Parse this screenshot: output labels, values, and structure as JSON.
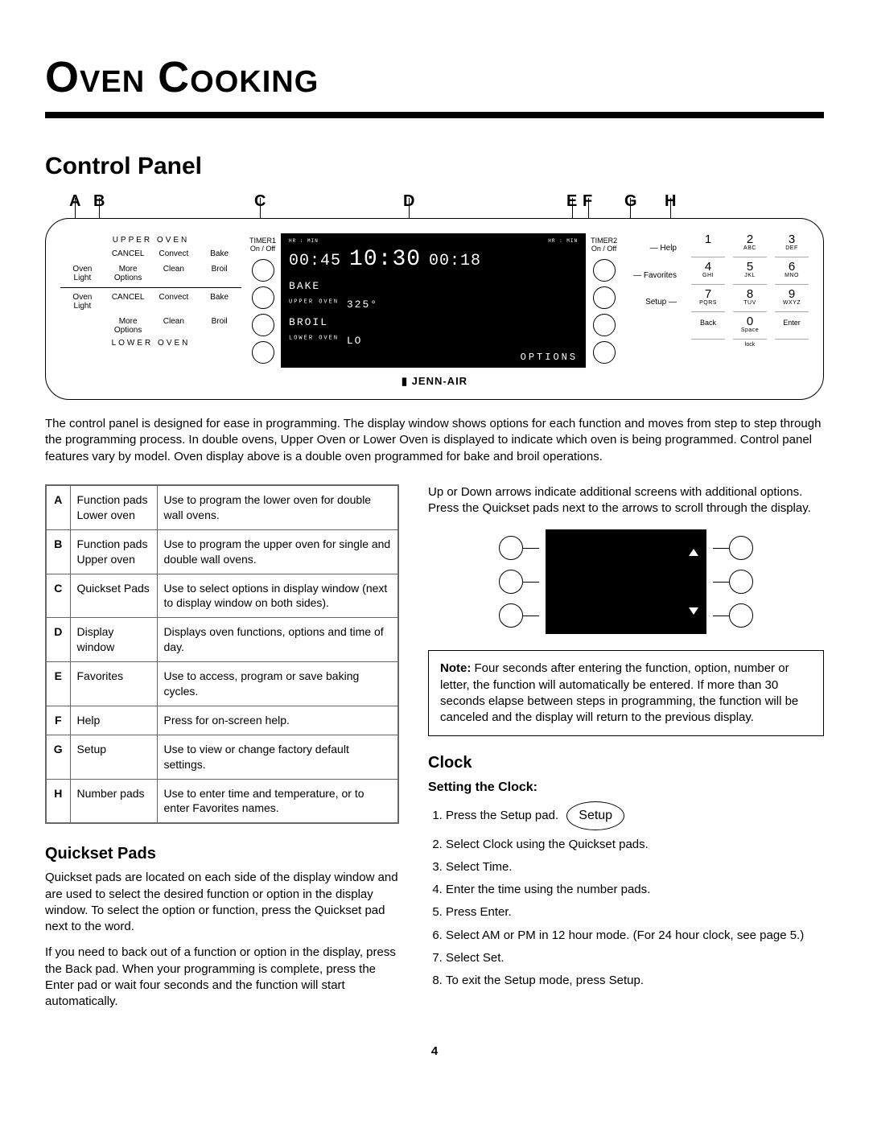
{
  "title": "Oven Cooking",
  "section": "Control Panel",
  "labels": {
    "A": "A",
    "B": "B",
    "C": "C",
    "D": "D",
    "E": "E",
    "F": "F",
    "G": "G",
    "H": "H"
  },
  "panel": {
    "upper_label": "UPPER OVEN",
    "lower_label": "LOWER OVEN",
    "row1": [
      "CANCEL",
      "Convect",
      "Bake"
    ],
    "row2": [
      "Oven\nLight",
      "More\nOptions",
      "Clean",
      "Broil"
    ],
    "row3": [
      "Oven\nLight",
      "CANCEL",
      "Convect",
      "Bake"
    ],
    "row4": [
      "More\nOptions",
      "Clean",
      "Broil"
    ],
    "timer1": "TIMER1",
    "timer1_sub": "On / Off",
    "timer2": "TIMER2",
    "timer2_sub": "On / Off",
    "display": {
      "hrmin": "HR : MIN",
      "t1": "00:45",
      "clock": "10:30",
      "t2": "00:18",
      "line1_pre": "BAKE",
      "line2_tiny": "UPPER OVEN",
      "line2": "325°",
      "line3_pre": "BROIL",
      "line4_tiny": "LOWER OVEN",
      "line4": "LO",
      "options": "OPTIONS"
    },
    "side": {
      "help": "Help",
      "favorites": "Favorites",
      "setup": "Setup"
    },
    "keypad": [
      {
        "n": "1",
        "s": ""
      },
      {
        "n": "2",
        "s": "ABC"
      },
      {
        "n": "3",
        "s": "DEF"
      },
      {
        "n": "4",
        "s": "GHI"
      },
      {
        "n": "5",
        "s": "JKL"
      },
      {
        "n": "6",
        "s": "MNO"
      },
      {
        "n": "7",
        "s": "PQRS"
      },
      {
        "n": "8",
        "s": "TUV"
      },
      {
        "n": "9",
        "s": "WXYZ"
      },
      {
        "n": "Back",
        "s": ""
      },
      {
        "n": "0",
        "s": "Space"
      },
      {
        "n": "Enter",
        "s": ""
      }
    ],
    "lock": "lock",
    "brand": "JENN-AIR"
  },
  "intro": "The control panel is designed for ease in programming.  The display window shows options for each function and moves from step to step through the programming process.  In double ovens, Upper Oven or Lower Oven is displayed to indicate which oven is being programmed. Control panel features vary by model. Oven display above is a double oven programmed for bake and broil operations.",
  "table": [
    {
      "l": "A",
      "n": "Function pads Lower oven",
      "d": "Use to program the lower oven for double wall ovens."
    },
    {
      "l": "B",
      "n": "Function pads Upper oven",
      "d": "Use to program the upper oven for single and double wall ovens."
    },
    {
      "l": "C",
      "n": "Quickset Pads",
      "d": "Use to select options in display window (next to display window on both sides)."
    },
    {
      "l": "D",
      "n": "Display window",
      "d": "Displays oven functions, options and time of day."
    },
    {
      "l": "E",
      "n": "Favorites",
      "d": "Use to access, program or save baking cycles."
    },
    {
      "l": "F",
      "n": "Help",
      "d": "Press for on-screen help."
    },
    {
      "l": "G",
      "n": "Setup",
      "d": "Use to view or change factory default settings."
    },
    {
      "l": "H",
      "n": "Number pads",
      "d": "Use to enter time and temperature, or to enter Favorites names."
    }
  ],
  "quickset": {
    "heading": "Quickset Pads",
    "p1": "Quickset pads are located on each side of the display window and are used to select the desired function or option in the display window.  To select the option or function, press the Quickset pad next to the word.",
    "p2": "If you need to back out of a function or option in the display, press the Back pad.  When your programming is complete, press the Enter pad or wait four seconds and the function will start automatically."
  },
  "arrows_text": "Up or Down arrows indicate additional screens with additional options.  Press the Quickset pads next to the arrows to scroll through the display.",
  "note": {
    "label": "Note:",
    "text": "Four seconds after entering the function, option, number or letter, the function will automatically be entered.  If more than 30 seconds elapse between steps in programming, the function will be canceled and the display will return to the previous display."
  },
  "clock": {
    "heading": "Clock",
    "subheading": "Setting the Clock:",
    "setup_label": "Setup",
    "steps": [
      "Press the Setup pad.",
      "Select Clock using the Quickset pads.",
      "Select Time.",
      "Enter the time using the number pads.",
      "Press Enter.",
      "Select AM or PM in 12 hour mode. (For 24 hour clock, see page 5.)",
      "Select Set.",
      "To exit the Setup mode, press Setup."
    ]
  },
  "page": "4"
}
